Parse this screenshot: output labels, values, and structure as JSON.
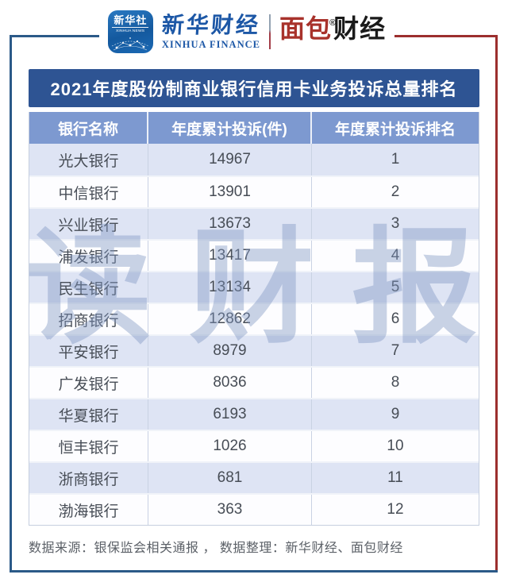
{
  "brand": {
    "xinhua_icon": {
      "line1": "新华社",
      "line2": "XINHUA NEWS"
    },
    "xinhua_finance_cn": "新华财经",
    "xinhua_finance_en": "XINHUA FINANCE",
    "mianbao_part1": "面包",
    "mianbao_part2": "财经",
    "registered_mark": "®"
  },
  "title": "2021年度股份制商业银行信用卡业务投诉总量排名",
  "watermark": "读财报读财报",
  "footer": "数据来源：银保监会相关通报 ， 数据整理：新华财经、面包财经",
  "chart_data": {
    "type": "table",
    "title": "2021年度股份制商业银行信用卡业务投诉总量排名",
    "columns": [
      "银行名称",
      "年度累计投诉(件)",
      "年度累计投诉排名"
    ],
    "rows": [
      {
        "bank": "光大银行",
        "complaints": 14967,
        "rank": 1
      },
      {
        "bank": "中信银行",
        "complaints": 13901,
        "rank": 2
      },
      {
        "bank": "兴业银行",
        "complaints": 13673,
        "rank": 3
      },
      {
        "bank": "浦发银行",
        "complaints": 13417,
        "rank": 4
      },
      {
        "bank": "民生银行",
        "complaints": 13134,
        "rank": 5
      },
      {
        "bank": "招商银行",
        "complaints": 12862,
        "rank": 6
      },
      {
        "bank": "平安银行",
        "complaints": 8979,
        "rank": 7
      },
      {
        "bank": "广发银行",
        "complaints": 8036,
        "rank": 8
      },
      {
        "bank": "华夏银行",
        "complaints": 6193,
        "rank": 9
      },
      {
        "bank": "恒丰银行",
        "complaints": 1026,
        "rank": 10
      },
      {
        "bank": "浙商银行",
        "complaints": 681,
        "rank": 11
      },
      {
        "bank": "渤海银行",
        "complaints": 363,
        "rank": 12
      }
    ]
  },
  "colors": {
    "title_bar": "#2e5493",
    "header_row": "#7d99d0",
    "odd_row": "#dee4f4",
    "even_row": "#fdfdff",
    "frame_blue": "#2b5a88",
    "frame_maroon": "#9c2f2e",
    "brand_blue": "#1c57a6",
    "brand_red": "#a8322b",
    "cell_text": "#474d56",
    "watermark_light": "rgba(127,150,192,0.42)",
    "watermark_dark": "#545d6a"
  }
}
